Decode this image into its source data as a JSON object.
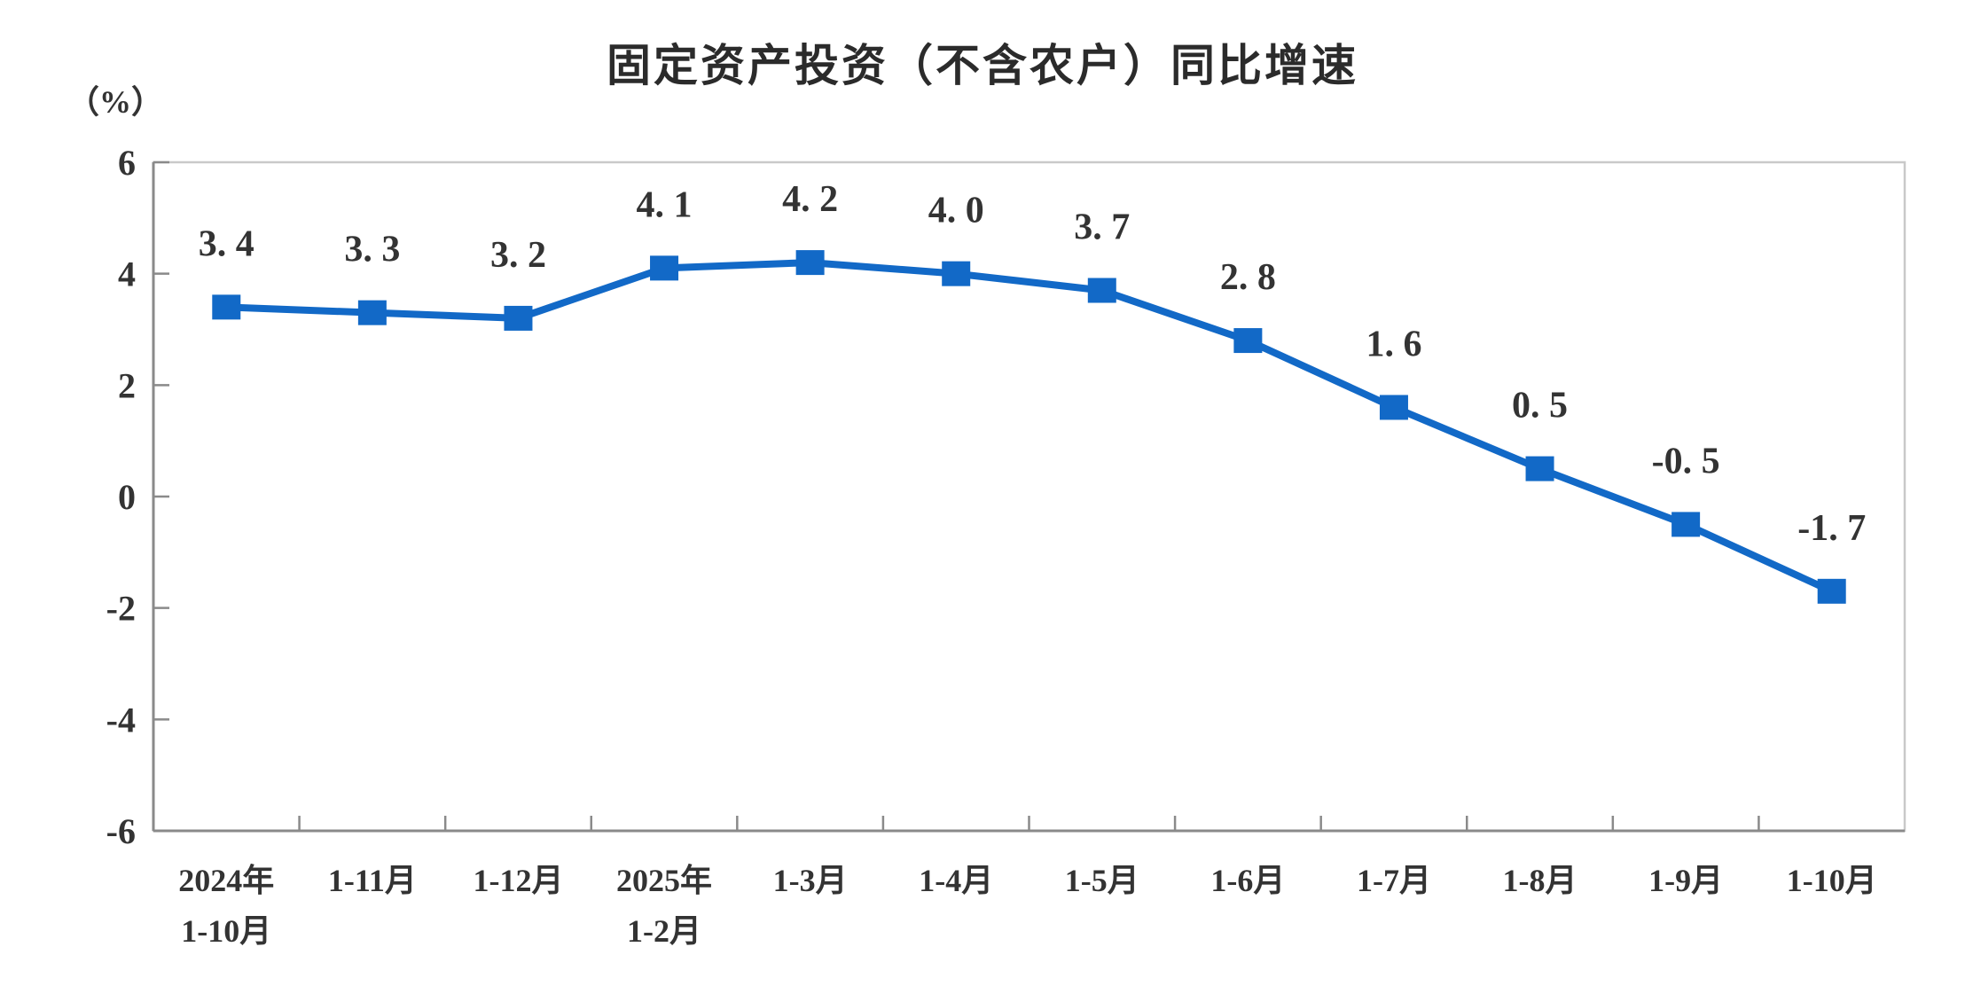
{
  "chart_data": {
    "type": "line",
    "title": "固定资产投资（不含农户）同比增速",
    "unit_label": "（%）",
    "categories": [
      [
        "2024年",
        "1-10月"
      ],
      [
        "1-11月"
      ],
      [
        "1-12月"
      ],
      [
        "2025年",
        "1-2月"
      ],
      [
        "1-3月"
      ],
      [
        "1-4月"
      ],
      [
        "1-5月"
      ],
      [
        "1-6月"
      ],
      [
        "1-7月"
      ],
      [
        "1-8月"
      ],
      [
        "1-9月"
      ],
      [
        "1-10月"
      ]
    ],
    "series": [
      {
        "values": [
          3.4,
          3.3,
          3.2,
          4.1,
          4.2,
          4.0,
          3.7,
          2.8,
          1.6,
          0.5,
          -0.5,
          -1.7
        ],
        "value_labels": [
          "3. 4",
          "3. 3",
          "3. 2",
          "4. 1",
          "4. 2",
          "4. 0",
          "3. 7",
          "2. 8",
          "1. 6",
          "0. 5",
          "-0. 5",
          "-1. 7"
        ]
      }
    ],
    "ylim": [
      -6,
      6
    ],
    "yticks": [
      6,
      4,
      2,
      0,
      -2,
      -4,
      -6
    ],
    "grid": false,
    "legend_position": "none",
    "marker_shape": "square",
    "colors": {
      "line": "#1269c7",
      "marker": "#1269c7",
      "axis": "#8a8a8a",
      "plot_border": "#c9c9c9",
      "text": "#333333",
      "title": "#2b2b2b",
      "background": "#ffffff"
    }
  }
}
